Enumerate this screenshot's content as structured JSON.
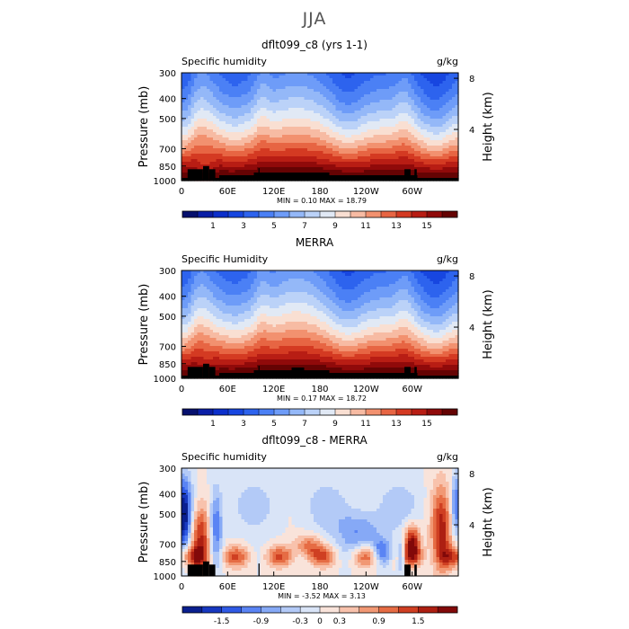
{
  "page": {
    "season_title": "JJA"
  },
  "colors": {
    "full": [
      "#06106e",
      "#0a1ea6",
      "#0c2fcb",
      "#1746e0",
      "#2d63ee",
      "#4b80f5",
      "#6e9cf8",
      "#94b8f8",
      "#bbd2f8",
      "#e1e9f5",
      "#f9dfd2",
      "#f7bba3",
      "#f2916f",
      "#e76543",
      "#d43a22",
      "#b81d14",
      "#900a0a",
      "#650303"
    ],
    "diff": [
      "#0a1f8f",
      "#1738c0",
      "#2f5ae5",
      "#5a84f4",
      "#86a9f6",
      "#b3caf7",
      "#d9e4f7",
      "#f9e3da",
      "#f8c2ac",
      "#f19874",
      "#e66c44",
      "#cf3f22",
      "#ad1f12",
      "#820909"
    ]
  },
  "chart_data": [
    {
      "type": "heatmap",
      "title": "dflt099_c8 (yrs 1-1)",
      "left_label": "Specific humidity",
      "right_label": "g/kg",
      "ylabel": "Pressure (mb)",
      "y2label": "Height (km)",
      "x_ticks": [
        "0",
        "60E",
        "120E",
        "180",
        "120W",
        "60W"
      ],
      "y_ticks": [
        "300",
        "400",
        "500",
        "700",
        "850",
        "1000"
      ],
      "y2_ticks": [
        "8",
        "4"
      ],
      "stats": "MIN =    0.10   MAX =  18.79",
      "min": 0.1,
      "max": 18.79,
      "colorbar_labels": [
        "1",
        "3",
        "5",
        "7",
        "9",
        "11",
        "13",
        "15"
      ],
      "levels": [
        0,
        1,
        2,
        3,
        4,
        5,
        6,
        7,
        8,
        9,
        10,
        11,
        12,
        13,
        14,
        15,
        16,
        17
      ],
      "field": "full",
      "variant": "model"
    },
    {
      "type": "heatmap",
      "title": "MERRA",
      "left_label": "Specific Humidity",
      "right_label": "g/kg",
      "ylabel": "Pressure (mb)",
      "y2label": "Height (km)",
      "x_ticks": [
        "0",
        "60E",
        "120E",
        "180",
        "120W",
        "60W"
      ],
      "y_ticks": [
        "300",
        "400",
        "500",
        "700",
        "850",
        "1000"
      ],
      "y2_ticks": [
        "8",
        "4"
      ],
      "stats": "MIN =    0.17   MAX =  18.72",
      "min": 0.17,
      "max": 18.72,
      "colorbar_labels": [
        "1",
        "3",
        "5",
        "7",
        "9",
        "11",
        "13",
        "15"
      ],
      "levels": [
        0,
        1,
        2,
        3,
        4,
        5,
        6,
        7,
        8,
        9,
        10,
        11,
        12,
        13,
        14,
        15,
        16,
        17
      ],
      "field": "full",
      "variant": "obs"
    },
    {
      "type": "heatmap",
      "title": "dflt099_c8 - MERRA",
      "left_label": "Specific humidity",
      "right_label": "g/kg",
      "ylabel": "Pressure (mb)",
      "y2label": "Height (km)",
      "x_ticks": [
        "0",
        "60E",
        "120E",
        "180",
        "120W",
        "60W"
      ],
      "y_ticks": [
        "300",
        "400",
        "500",
        "700",
        "850",
        "1000"
      ],
      "y2_ticks": [
        "8",
        "4"
      ],
      "stats": "MIN =   -3.52   MAX =   3.13",
      "min": -3.52,
      "max": 3.13,
      "colorbar_labels": [
        "-1.5",
        "-0.9",
        "-0.3",
        "0",
        "0.3",
        "0.9",
        "1.5"
      ],
      "levels": [
        -1.8,
        -1.5,
        -1.2,
        -0.9,
        -0.6,
        -0.3,
        0,
        0.3,
        0.6,
        0.9,
        1.2,
        1.5,
        1.8
      ],
      "field": "diff",
      "variant": "diff"
    }
  ]
}
